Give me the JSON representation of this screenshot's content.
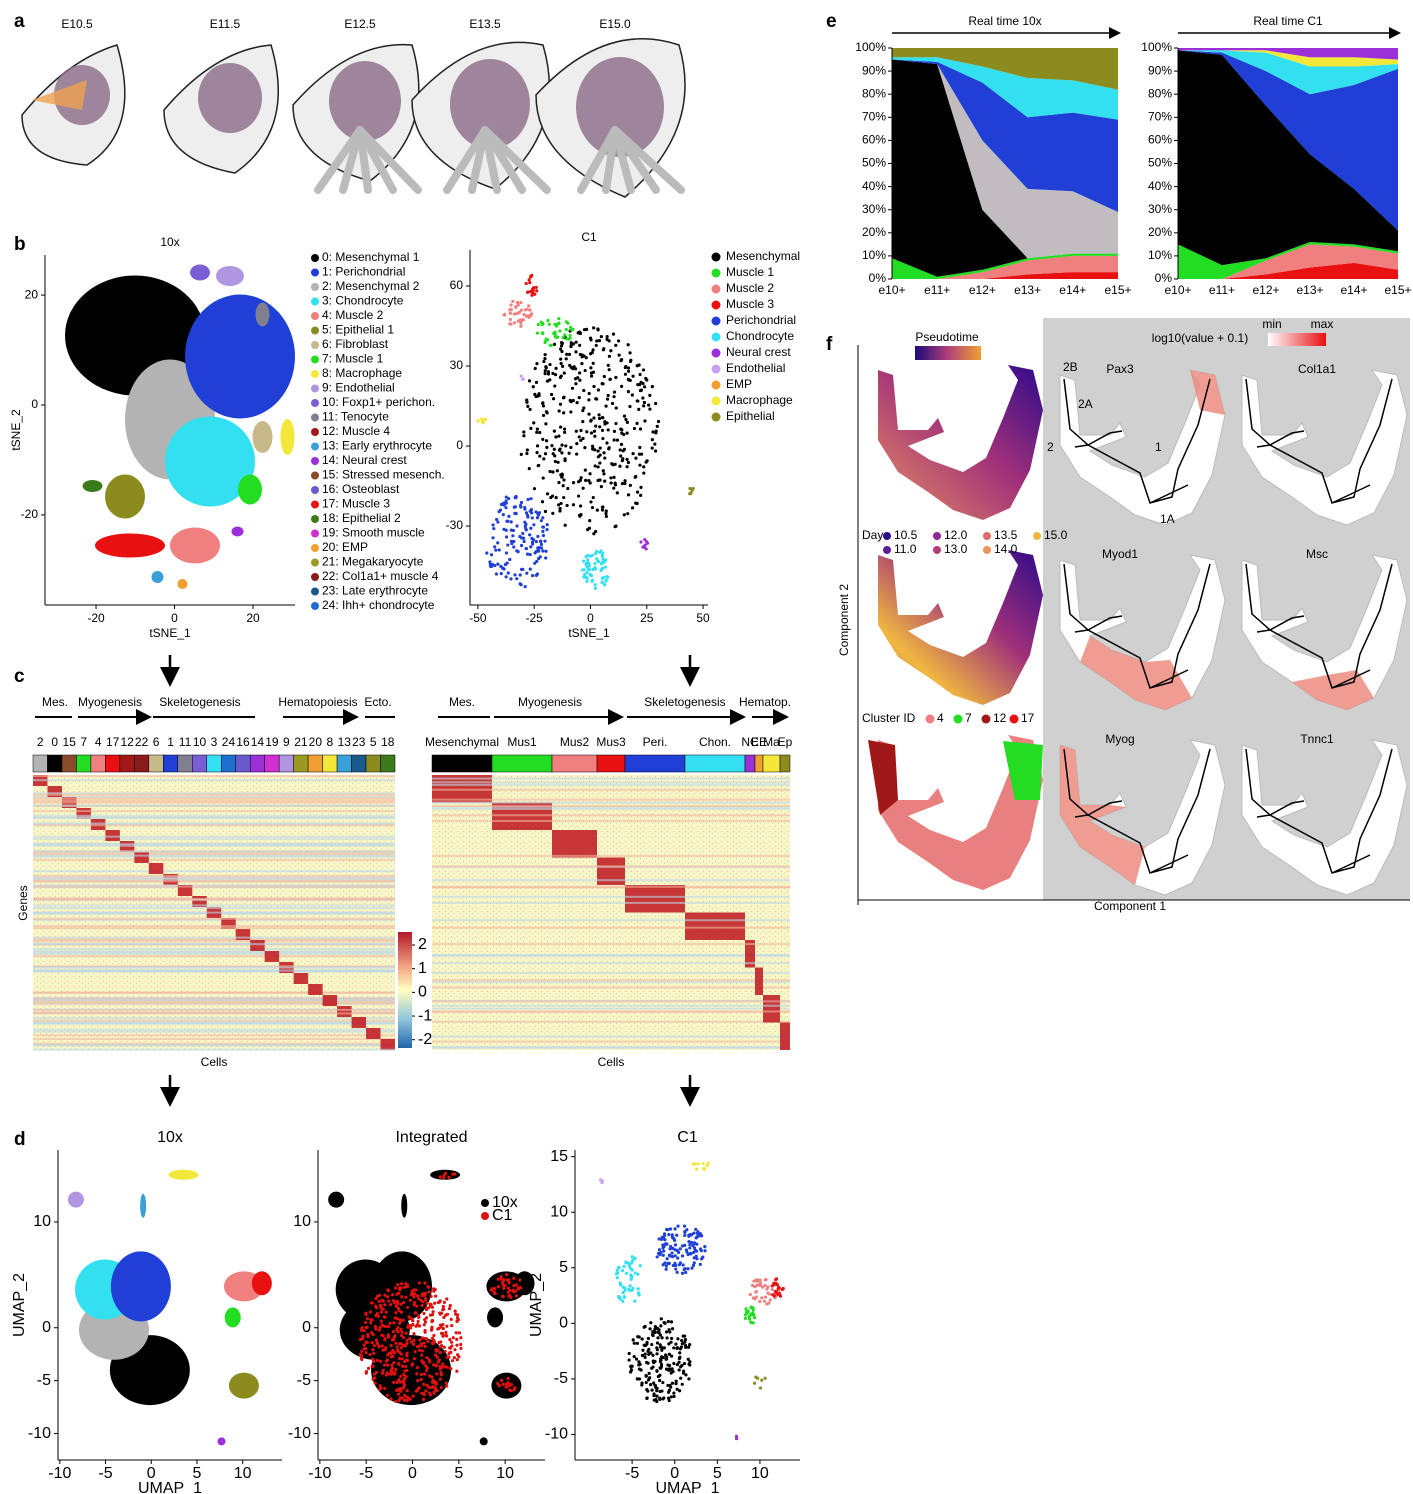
{
  "panel_labels": [
    "a",
    "b",
    "c",
    "d",
    "e",
    "f"
  ],
  "panel_a": {
    "stages": [
      "E10.5",
      "E11.5",
      "E12.5",
      "E13.5",
      "E15.0"
    ]
  },
  "panel_b": {
    "plots": [
      {
        "title": "10x",
        "xlabel": "tSNE_1",
        "ylabel": "tSNE_2",
        "xlim": [
          -33,
          30.7
        ],
        "ylim": [
          -36.4,
          27.3
        ],
        "xticks": [
          -20,
          0,
          20
        ],
        "yticks": [
          20,
          0,
          -20
        ]
      },
      {
        "title": "C1",
        "xlabel": "tSNE_1",
        "ylabel": "",
        "xlim": [
          -53.5,
          52.2
        ],
        "ylim": [
          -59.6,
          73.5
        ],
        "xticks": [
          -50,
          -25,
          0,
          25,
          50
        ],
        "yticks": [
          60,
          30,
          0,
          -30
        ]
      }
    ],
    "legends": [
      [
        {
          "name": "0: Mesenchymal 1",
          "color": "#000000"
        },
        {
          "name": "1: Perichondrial",
          "color": "#1f3fd6"
        },
        {
          "name": "2: Mesenchymal 2",
          "color": "#b3b3b3"
        },
        {
          "name": "3: Chondrocyte",
          "color": "#33e0f0"
        },
        {
          "name": "4: Muscle 2",
          "color": "#f08080"
        },
        {
          "name": "5: Epithelial 1",
          "color": "#8b8b1f"
        },
        {
          "name": "6: Fibroblast",
          "color": "#c8b98a"
        },
        {
          "name": "7: Muscle 1",
          "color": "#22dd22"
        },
        {
          "name": "8: Macrophage",
          "color": "#f3e73a"
        },
        {
          "name": "9: Endothelial",
          "color": "#b095e0"
        },
        {
          "name": "10: Foxp1+ perichon.",
          "color": "#7b5ed6"
        },
        {
          "name": "11: Tenocyte",
          "color": "#7f7f8f"
        },
        {
          "name": "12: Muscle 4",
          "color": "#a01818"
        },
        {
          "name": "13: Early erythrocyte",
          "color": "#3aa0d8"
        },
        {
          "name": "14: Neural crest",
          "color": "#9b30d8"
        },
        {
          "name": "15: Stressed mesench.",
          "color": "#8b4a2a"
        },
        {
          "name": "16: Osteoblast",
          "color": "#6a5acd"
        },
        {
          "name": "17: Muscle 3",
          "color": "#e81010"
        },
        {
          "name": "18: Epithelial 2",
          "color": "#3a7a1a"
        },
        {
          "name": "19: Smooth muscle",
          "color": "#d22fd2"
        },
        {
          "name": "20: EMP",
          "color": "#f0a030"
        },
        {
          "name": "21: Megakaryocyte",
          "color": "#9a9a20"
        },
        {
          "name": "22: Col1a1+ muscle 4",
          "color": "#8b1a1a"
        },
        {
          "name": "23: Late erythrocyte",
          "color": "#1a5a8a"
        },
        {
          "name": "24: Ihh+ chondrocyte",
          "color": "#1f6fd0"
        }
      ],
      [
        {
          "name": "Mesenchymal",
          "color": "#000000"
        },
        {
          "name": "Muscle 1",
          "color": "#22dd22"
        },
        {
          "name": "Muscle 2",
          "color": "#f08080"
        },
        {
          "name": "Muscle 3",
          "color": "#e81010"
        },
        {
          "name": "Perichondrial",
          "color": "#1f3fd6"
        },
        {
          "name": "Chondrocyte",
          "color": "#33e0f0"
        },
        {
          "name": "Neural crest",
          "color": "#9b30d8"
        },
        {
          "name": "Endothelial",
          "color": "#c9a0f0"
        },
        {
          "name": "EMP",
          "color": "#f0a030"
        },
        {
          "name": "Macrophage",
          "color": "#f3e73a"
        },
        {
          "name": "Epithelial",
          "color": "#8b8b1f"
        }
      ]
    ]
  },
  "panel_c": {
    "left": {
      "groups": [
        "Mes.",
        "Myogenesis",
        "Skeletogenesis",
        "Hematopoiesis",
        "Ecto."
      ],
      "clusters": [
        {
          "label": "2",
          "color": "#b3b3b3"
        },
        {
          "label": "0",
          "color": "#000000"
        },
        {
          "label": "15",
          "color": "#8b4a2a"
        },
        {
          "label": "7",
          "color": "#22dd22"
        },
        {
          "label": "4",
          "color": "#f08080"
        },
        {
          "label": "17",
          "color": "#e81010"
        },
        {
          "label": "12",
          "color": "#a01818"
        },
        {
          "label": "22",
          "color": "#8b1a1a"
        },
        {
          "label": "6",
          "color": "#c8b98a"
        },
        {
          "label": "1",
          "color": "#1f3fd6"
        },
        {
          "label": "11",
          "color": "#7f7f8f"
        },
        {
          "label": "10",
          "color": "#7b5ed6"
        },
        {
          "label": "3",
          "color": "#33e0f0"
        },
        {
          "label": "24",
          "color": "#1f6fd0"
        },
        {
          "label": "16",
          "color": "#6a5acd"
        },
        {
          "label": "14",
          "color": "#9b30d8"
        },
        {
          "label": "19",
          "color": "#d22fd2"
        },
        {
          "label": "9",
          "color": "#b095e0"
        },
        {
          "label": "21",
          "color": "#9a9a20"
        },
        {
          "label": "20",
          "color": "#f0a030"
        },
        {
          "label": "8",
          "color": "#f3e73a"
        },
        {
          "label": "13",
          "color": "#3aa0d8"
        },
        {
          "label": "23",
          "color": "#1a5a8a"
        },
        {
          "label": "5",
          "color": "#8b8b1f"
        },
        {
          "label": "18",
          "color": "#3a7a1a"
        }
      ],
      "ylabel": "Genes",
      "xlabel": "Cells"
    },
    "right": {
      "groups": [
        "Mes.",
        "Myogenesis",
        "Skeletogenesis",
        "Hematop."
      ],
      "clusters": [
        {
          "label": "Mesenchymal",
          "color": "#000000"
        },
        {
          "label": "Mus1",
          "color": "#22dd22"
        },
        {
          "label": "Mus2",
          "color": "#f08080"
        },
        {
          "label": "Mus3",
          "color": "#e81010"
        },
        {
          "label": "Peri.",
          "color": "#1f3fd6"
        },
        {
          "label": "Chon.",
          "color": "#33e0f0"
        },
        {
          "label": "NC",
          "color": "#9b30d8"
        },
        {
          "label": "EE",
          "color": "#f0a030"
        },
        {
          "label": "Ma",
          "color": "#f3e73a"
        },
        {
          "label": "Ep",
          "color": "#8b8b1f"
        }
      ],
      "xlabel": "Cells"
    },
    "colorbar": {
      "lim": [
        -2.35,
        2.55
      ],
      "ticks": [
        2,
        1,
        0,
        -1,
        -2
      ]
    }
  },
  "panel_d": {
    "plots": [
      {
        "title": "10x",
        "xlabel": "UMAP_1",
        "ylabel": "UMAP_2",
        "xlim": [
          -10.2,
          14.3
        ],
        "ylim": [
          -12.5,
          16.8
        ],
        "xticks": [
          -10,
          -5,
          0,
          5,
          10
        ],
        "yticks": [
          10,
          0,
          -5,
          -10
        ]
      },
      {
        "title": "Integrated",
        "xlabel": "",
        "ylabel": "",
        "xlim": [
          -10.2,
          14.3
        ],
        "ylim": [
          -12.5,
          16.8
        ],
        "xticks": [
          -10,
          -5,
          0,
          5,
          10
        ],
        "yticks": [
          10,
          0,
          -5,
          -10
        ],
        "legend": [
          {
            "name": "10x",
            "color": "#000000"
          },
          {
            "name": "C1",
            "color": "#e01010"
          }
        ]
      },
      {
        "title": "C1",
        "xlabel": "UMAP_1",
        "ylabel": "UMAP_2",
        "xlim": [
          -11.7,
          14.7
        ],
        "ylim": [
          -12.3,
          15.6
        ],
        "xticks": [
          -5,
          0,
          5,
          10
        ],
        "yticks": [
          15,
          10,
          5,
          0,
          -5,
          -10
        ]
      }
    ]
  },
  "chart_data": [
    {
      "type": "area",
      "stacked": true,
      "annotation": "Real time 10x",
      "categories": [
        "e10+",
        "e11+",
        "e12+",
        "e13+",
        "e14+",
        "e15+"
      ],
      "ylim": [
        0,
        100
      ],
      "yticks": [
        {
          "value": 0,
          "label": "0%"
        },
        {
          "value": 10,
          "label": "10%"
        },
        {
          "value": 20,
          "label": "20%"
        },
        {
          "value": 30,
          "label": "30%"
        },
        {
          "value": 40,
          "label": "40%"
        },
        {
          "value": 50,
          "label": "50%"
        },
        {
          "value": 60,
          "label": "60%"
        },
        {
          "value": 70,
          "label": "70%"
        },
        {
          "value": 80,
          "label": "80%"
        },
        {
          "value": 90,
          "label": "90%"
        },
        {
          "value": 100,
          "label": "100%"
        }
      ],
      "series": [
        {
          "color": "#e81010",
          "values": [
            0,
            0,
            0,
            2,
            3,
            3
          ]
        },
        {
          "color": "#f08080",
          "values": [
            0,
            0,
            3,
            6,
            7,
            7
          ]
        },
        {
          "color": "#22dd22",
          "values": [
            9,
            1,
            1,
            1,
            1,
            1
          ]
        },
        {
          "color": "#000000",
          "values": [
            86,
            92,
            26,
            0,
            0,
            0
          ]
        },
        {
          "color": "#c0bcc0",
          "values": [
            0,
            0,
            30,
            30,
            27,
            18
          ]
        },
        {
          "color": "#1f3fd6",
          "values": [
            0,
            1,
            25,
            31,
            34,
            40
          ]
        },
        {
          "color": "#33e0f0",
          "values": [
            1,
            2,
            7,
            17,
            14,
            13
          ]
        },
        {
          "color": "#8b8b1f",
          "values": [
            4,
            4,
            8,
            13,
            14,
            18
          ]
        }
      ]
    },
    {
      "type": "area",
      "stacked": true,
      "annotation": "Real time C1",
      "categories": [
        "e10+",
        "e11+",
        "e12+",
        "e13+",
        "e14+",
        "e15+"
      ],
      "ylim": [
        0,
        100
      ],
      "yticks": [
        {
          "value": 0,
          "label": "0%"
        },
        {
          "value": 10,
          "label": "10%"
        },
        {
          "value": 20,
          "label": "20%"
        },
        {
          "value": 30,
          "label": "30%"
        },
        {
          "value": 40,
          "label": "40%"
        },
        {
          "value": 50,
          "label": "50%"
        },
        {
          "value": 60,
          "label": "60%"
        },
        {
          "value": 70,
          "label": "70%"
        },
        {
          "value": 80,
          "label": "80%"
        },
        {
          "value": 90,
          "label": "90%"
        },
        {
          "value": 100,
          "label": "100%"
        }
      ],
      "series": [
        {
          "color": "#e81010",
          "values": [
            0,
            0,
            2,
            5,
            7,
            4
          ]
        },
        {
          "color": "#f08080",
          "values": [
            0,
            0,
            6,
            10,
            7,
            7
          ]
        },
        {
          "color": "#22dd22",
          "values": [
            15,
            6,
            1,
            1,
            1,
            1
          ]
        },
        {
          "color": "#000000",
          "values": [
            84,
            91,
            66,
            38,
            24,
            9
          ]
        },
        {
          "color": "#1f3fd6",
          "values": [
            0,
            1,
            15,
            26,
            45,
            70
          ]
        },
        {
          "color": "#33e0f0",
          "values": [
            0,
            1,
            8,
            12,
            8,
            2
          ]
        },
        {
          "color": "#f3e73a",
          "values": [
            0,
            0,
            1,
            4,
            4,
            2
          ]
        },
        {
          "color": "#9b30d8",
          "values": [
            1,
            1,
            1,
            4,
            4,
            5
          ]
        }
      ]
    }
  ],
  "panel_f": {
    "pseudotime_label": "Pseudotime",
    "expression_label": "log10(value + 0.1)",
    "min_label": "min",
    "max_label": "max",
    "day_title": "Day",
    "days": [
      {
        "label": "10.5",
        "color": "#2d0a8a"
      },
      {
        "label": "11.0",
        "color": "#5a1a9a"
      },
      {
        "label": "12.0",
        "color": "#8a2a9a"
      },
      {
        "label": "13.0",
        "color": "#b0407a"
      },
      {
        "label": "13.5",
        "color": "#e06a6a"
      },
      {
        "label": "14.0",
        "color": "#f0905a"
      },
      {
        "label": "15.0",
        "color": "#f0b840"
      }
    ],
    "cluster_title": "Cluster ID",
    "clusters": [
      {
        "label": "4",
        "color": "#f08080"
      },
      {
        "label": "7",
        "color": "#22dd22"
      },
      {
        "label": "12",
        "color": "#a01818"
      },
      {
        "label": "17",
        "color": "#e81010"
      }
    ],
    "genes": [
      "Pax3",
      "Col1a1",
      "Myod1",
      "Msc",
      "Myog",
      "Tnnc1"
    ],
    "branches": [
      "2B",
      "2A",
      "2",
      "1",
      "1A"
    ],
    "xlabel": "Component 1",
    "ylabel": "Component 2"
  }
}
